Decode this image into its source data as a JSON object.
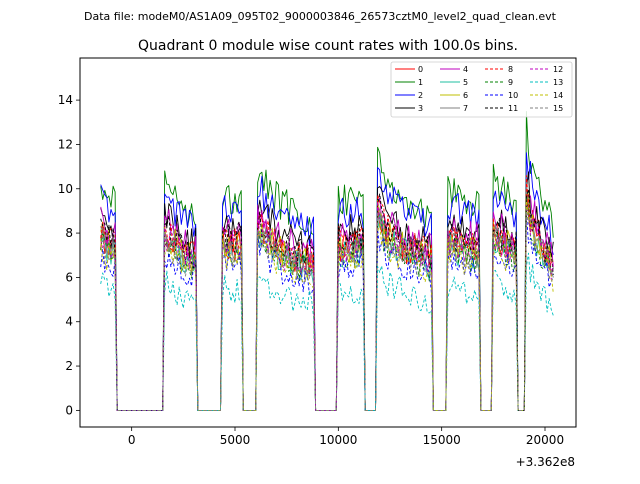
{
  "chart_data": {
    "type": "line",
    "suptitle": "Data file: modeM0/AS1A09_095T02_9000003846_26573cztM0_level2_quad_clean.evt",
    "title": "Quadrant 0 module wise count rates with 100.0s bins.",
    "xlabel": "",
    "ylabel": "",
    "offset_label": "+3.362e8",
    "xlim": [
      -2500,
      21500
    ],
    "ylim": [
      -0.75,
      15.9
    ],
    "x_ticks": [
      0,
      5000,
      10000,
      15000,
      20000
    ],
    "x_tick_labels": [
      "0",
      "5000",
      "10000",
      "15000",
      "20000"
    ],
    "y_ticks": [
      0,
      2,
      4,
      6,
      8,
      10,
      12,
      14
    ],
    "y_tick_labels": [
      "0",
      "2",
      "4",
      "6",
      "8",
      "10",
      "12",
      "14"
    ],
    "legend_position": "top-right",
    "segments": [
      [
        -1500,
        -800
      ],
      [
        1600,
        3100
      ],
      [
        4400,
        5300
      ],
      [
        6100,
        8800
      ],
      [
        10000,
        11200
      ],
      [
        11900,
        14500
      ],
      [
        15300,
        16800
      ],
      [
        17500,
        18600
      ],
      [
        19100,
        20400
      ]
    ],
    "gaps": [
      [
        -800,
        1600
      ],
      [
        3100,
        4400
      ],
      [
        5300,
        6100
      ],
      [
        8800,
        10000
      ],
      [
        11200,
        11900
      ],
      [
        14500,
        15300
      ],
      [
        16800,
        17500
      ],
      [
        18600,
        19100
      ]
    ],
    "segment_shape": [
      [
        [
          0,
          1.0
        ],
        [
          0.25,
          0.96
        ],
        [
          0.7,
          0.93
        ],
        [
          1,
          0.9
        ]
      ],
      [
        [
          0,
          1.0
        ],
        [
          0.15,
          0.98
        ],
        [
          0.5,
          0.9
        ],
        [
          0.85,
          0.85
        ],
        [
          1,
          0.86
        ]
      ],
      [
        [
          0,
          0.96
        ],
        [
          0.5,
          0.92
        ],
        [
          1,
          0.95
        ]
      ],
      [
        [
          0,
          1.06
        ],
        [
          0.1,
          1.0
        ],
        [
          0.45,
          0.89
        ],
        [
          1,
          0.82
        ]
      ],
      [
        [
          0,
          0.93
        ],
        [
          0.5,
          0.92
        ],
        [
          1,
          0.93
        ]
      ],
      [
        [
          0,
          1.13
        ],
        [
          0.15,
          1.0
        ],
        [
          0.5,
          0.92
        ],
        [
          1,
          0.85
        ]
      ],
      [
        [
          0,
          0.96
        ],
        [
          0.5,
          0.92
        ],
        [
          1,
          0.9
        ]
      ],
      [
        [
          0,
          1.0
        ],
        [
          0.5,
          0.94
        ],
        [
          1,
          0.91
        ]
      ],
      [
        [
          0,
          1.22
        ],
        [
          0.2,
          1.05
        ],
        [
          0.6,
          0.92
        ],
        [
          1,
          0.8
        ]
      ]
    ],
    "series": [
      {
        "name": "0",
        "color": "#ff0000",
        "dashed": false,
        "base": 8.0
      },
      {
        "name": "1",
        "color": "#008000",
        "dashed": false,
        "base": 10.4
      },
      {
        "name": "2",
        "color": "#0000ff",
        "dashed": false,
        "base": 9.7
      },
      {
        "name": "3",
        "color": "#000000",
        "dashed": false,
        "base": 8.8
      },
      {
        "name": "4",
        "color": "#bf00bf",
        "dashed": false,
        "base": 8.6
      },
      {
        "name": "5",
        "color": "#1fbfa0",
        "dashed": false,
        "base": 7.7
      },
      {
        "name": "6",
        "color": "#bfbf00",
        "dashed": false,
        "base": 8.0
      },
      {
        "name": "7",
        "color": "#808080",
        "dashed": false,
        "base": 7.9
      },
      {
        "name": "8",
        "color": "#ff0000",
        "dashed": true,
        "base": 8.2
      },
      {
        "name": "9",
        "color": "#008000",
        "dashed": true,
        "base": 7.6
      },
      {
        "name": "10",
        "color": "#0000ff",
        "dashed": true,
        "base": 7.1
      },
      {
        "name": "11",
        "color": "#000000",
        "dashed": true,
        "base": 8.3
      },
      {
        "name": "12",
        "color": "#bf00bf",
        "dashed": true,
        "base": 7.9
      },
      {
        "name": "13",
        "color": "#00bfbf",
        "dashed": true,
        "base": 5.8
      },
      {
        "name": "14",
        "color": "#bfbf00",
        "dashed": true,
        "base": 7.4
      },
      {
        "name": "15",
        "color": "#808080",
        "dashed": true,
        "base": 7.7
      }
    ]
  }
}
